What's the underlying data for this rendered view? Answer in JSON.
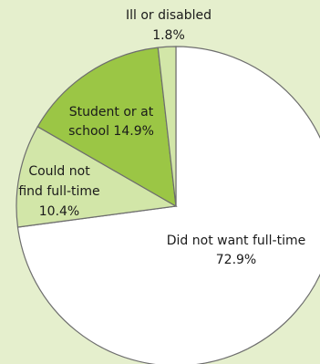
{
  "chart_data": {
    "type": "pie",
    "title": "",
    "slices": [
      {
        "name": "Did not want full-time",
        "value": 72.9,
        "value_label": "72.9%",
        "color": "#ffffff"
      },
      {
        "name": "Could not find full-time",
        "value": 10.4,
        "value_label": "10.4%",
        "color": "#d2e6a8"
      },
      {
        "name": "Student or at school",
        "value": 14.9,
        "value_label": "14.9%",
        "color": "#9bc645"
      },
      {
        "name": "Ill or disabled",
        "value": 1.8,
        "value_label": "1.8%",
        "color": "#d2e6a8"
      }
    ],
    "labels": {
      "did_not_want": [
        "Did not want full-time",
        "72.9%"
      ],
      "could_not_find": [
        "Could not",
        "find full-time",
        "10.4%"
      ],
      "student": [
        "Student or at",
        "school 14.9%"
      ],
      "ill": [
        "Ill or disabled",
        "1.8%"
      ]
    }
  },
  "colors": {
    "background": "#e5efcd",
    "outline": "#6e6e6e"
  }
}
